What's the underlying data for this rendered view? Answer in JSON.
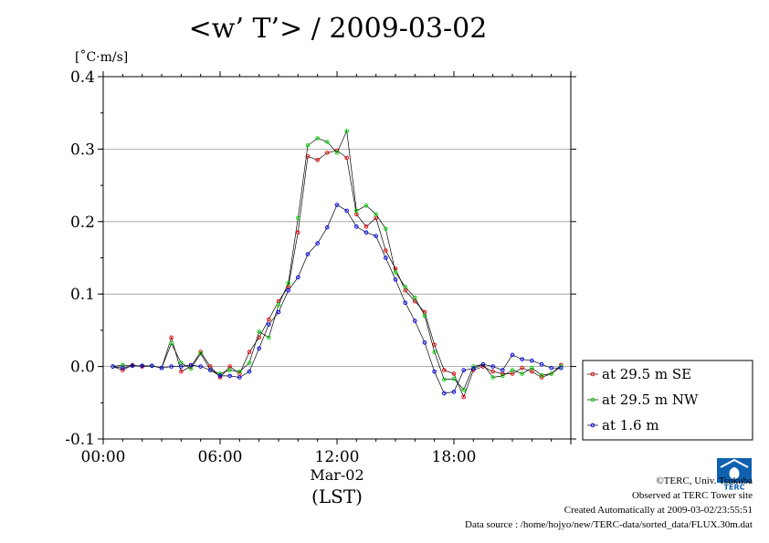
{
  "title": "<w’ T’> / 2009-03-02",
  "unit_label": "[˚C·m/s]",
  "date_label": "Mar-02",
  "tz_label": "(LST)",
  "credits": {
    "line1": "©TERC, Univ. Tsukuba",
    "line2": "Observed at TERC Tower site",
    "line3": "Created Automatically at 2009-03-02/23:55:51",
    "line4": "Data source : /home/hojyo/new/TERC-data/sorted_data/FLUX.30m.dat"
  },
  "logo_text": "TERC",
  "colors": {
    "se": "#ff0000",
    "nw": "#00dd00",
    "low": "#0000ff",
    "line": "#000000",
    "grid": "#999999"
  },
  "chart_data": {
    "type": "line",
    "title": "<w’ T’> / 2009-03-02",
    "ylabel": "[˚C·m/s]",
    "xlabel": "(LST)",
    "xlim": [
      0,
      24
    ],
    "ylim": [
      -0.1,
      0.4
    ],
    "x_ticks": [
      0,
      6,
      12,
      18
    ],
    "x_tick_labels": [
      "00:00",
      "06:00",
      "12:00",
      "18:00"
    ],
    "y_ticks": [
      -0.1,
      0.0,
      0.1,
      0.2,
      0.3,
      0.4
    ],
    "y_tick_labels": [
      "-0.1",
      "0.0",
      "0.1",
      "0.2",
      "0.3",
      "0.4"
    ],
    "grid": true,
    "legend_position": "right",
    "x": [
      0.5,
      1.0,
      1.5,
      2.0,
      2.5,
      3.0,
      3.5,
      4.0,
      4.5,
      5.0,
      5.5,
      6.0,
      6.5,
      7.0,
      7.5,
      8.0,
      8.5,
      9.0,
      9.5,
      10.0,
      10.5,
      11.0,
      11.5,
      12.0,
      12.5,
      13.0,
      13.5,
      14.0,
      14.5,
      15.0,
      15.5,
      16.0,
      16.5,
      17.0,
      17.5,
      18.0,
      18.5,
      19.0,
      19.5,
      20.0,
      20.5,
      21.0,
      21.5,
      22.0,
      22.5,
      23.0,
      23.5
    ],
    "series": [
      {
        "name": "at 29.5 m SE",
        "color": "#ff0000",
        "values": [
          0.0,
          -0.005,
          0.002,
          0.0,
          0.001,
          -0.002,
          0.04,
          -0.007,
          0.0,
          0.02,
          0.0,
          -0.015,
          0.0,
          -0.01,
          0.02,
          0.04,
          0.065,
          0.09,
          0.11,
          0.185,
          0.29,
          0.285,
          0.295,
          0.298,
          0.288,
          0.21,
          0.193,
          0.205,
          0.16,
          0.135,
          0.105,
          0.09,
          0.075,
          0.03,
          -0.005,
          -0.01,
          -0.042,
          -0.005,
          0.0,
          -0.007,
          -0.01,
          -0.01,
          -0.002,
          -0.007,
          -0.015,
          -0.01,
          0.002
        ]
      },
      {
        "name": "at 29.5 m NW",
        "color": "#00dd00",
        "values": [
          0.0,
          0.002,
          0.001,
          0.001,
          0.001,
          -0.002,
          0.032,
          0.005,
          -0.003,
          0.018,
          -0.005,
          -0.01,
          -0.005,
          -0.007,
          0.005,
          0.048,
          0.04,
          0.085,
          0.115,
          0.205,
          0.305,
          0.315,
          0.31,
          0.295,
          0.325,
          0.215,
          0.222,
          0.21,
          0.19,
          0.13,
          0.11,
          0.095,
          0.07,
          0.02,
          -0.018,
          -0.017,
          -0.032,
          0.0,
          0.003,
          -0.015,
          -0.013,
          -0.005,
          -0.01,
          -0.002,
          -0.012,
          -0.01,
          0.0
        ]
      },
      {
        "name": "at 1.6 m",
        "color": "#0000ff",
        "values": [
          0.0,
          -0.002,
          0.001,
          0.001,
          0.001,
          -0.002,
          0.0,
          0.0,
          0.002,
          0.0,
          -0.005,
          -0.013,
          -0.013,
          -0.015,
          -0.007,
          0.025,
          0.058,
          0.075,
          0.105,
          0.123,
          0.155,
          0.17,
          0.192,
          0.223,
          0.215,
          0.193,
          0.185,
          0.18,
          0.15,
          0.12,
          0.088,
          0.063,
          0.033,
          -0.007,
          -0.037,
          -0.035,
          -0.005,
          -0.003,
          0.003,
          0.0,
          -0.005,
          0.016,
          0.01,
          0.008,
          0.003,
          -0.002,
          -0.002
        ]
      }
    ]
  }
}
